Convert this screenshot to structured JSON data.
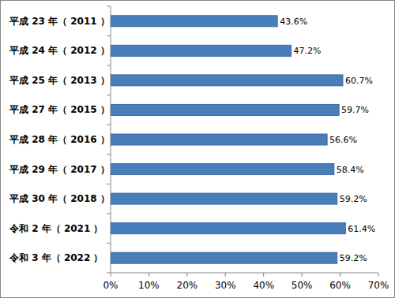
{
  "chart_data": {
    "type": "bar",
    "orientation": "horizontal",
    "categories": [
      "平成 23 年（ 2011 ）",
      "平成 24 年（ 2012 ）",
      "平成 25 年（ 2013 ）",
      "平成 27 年（ 2015 ）",
      "平成 28 年（ 2016 ）",
      "平成 29 年（ 2017 ）",
      "平成 30 年（ 2018 ）",
      "令和 2 年（ 2021 ）",
      "令和 3 年（ 2022 ）"
    ],
    "values": [
      43.6,
      47.2,
      60.7,
      59.7,
      56.6,
      58.4,
      59.2,
      61.4,
      59.2
    ],
    "value_labels": [
      "43.6%",
      "47.2%",
      "60.7%",
      "59.7%",
      "56.6%",
      "58.4%",
      "59.2%",
      "61.4%",
      "59.2%"
    ],
    "color": "#4a7ebb",
    "xlim": [
      0,
      70
    ],
    "xticks": [
      {
        "value": 0,
        "label": "0%"
      },
      {
        "value": 10,
        "label": "10%"
      },
      {
        "value": 20,
        "label": "20%"
      },
      {
        "value": 30,
        "label": "30%"
      },
      {
        "value": 40,
        "label": "40%"
      },
      {
        "value": 50,
        "label": "50%"
      },
      {
        "value": 60,
        "label": "60%"
      },
      {
        "value": 70,
        "label": "70%"
      }
    ],
    "grid": false,
    "data_labels": true
  }
}
